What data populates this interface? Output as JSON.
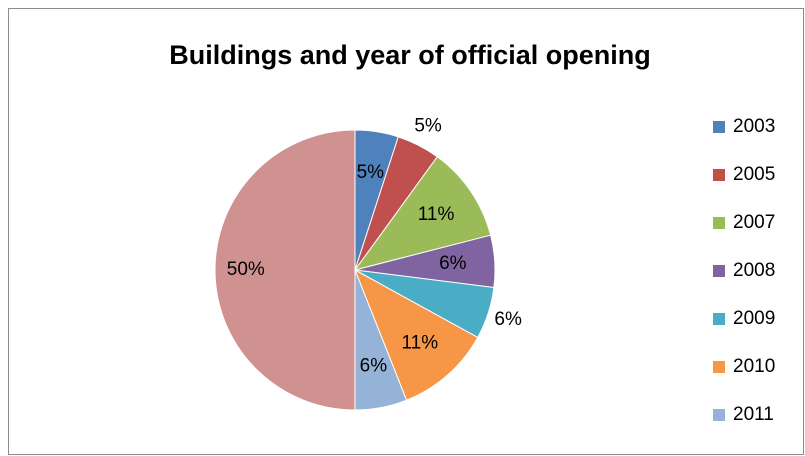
{
  "chart_data": {
    "type": "pie",
    "title": "Buildings and year of official opening",
    "categories": [
      "2003",
      "2005",
      "2007",
      "2008",
      "2009",
      "2010",
      "2011",
      null
    ],
    "values": [
      5,
      5,
      11,
      6,
      6,
      11,
      6,
      50
    ],
    "value_labels": [
      "5%",
      "5%",
      "11%",
      "6%",
      "6%",
      "11%",
      "6%",
      "50%"
    ],
    "colors": [
      "#4f81bd",
      "#c0504d",
      "#9bbb59",
      "#8064a2",
      "#4bacc6",
      "#f79646",
      "#95b3d7",
      "#d09191"
    ],
    "legend": "right"
  }
}
